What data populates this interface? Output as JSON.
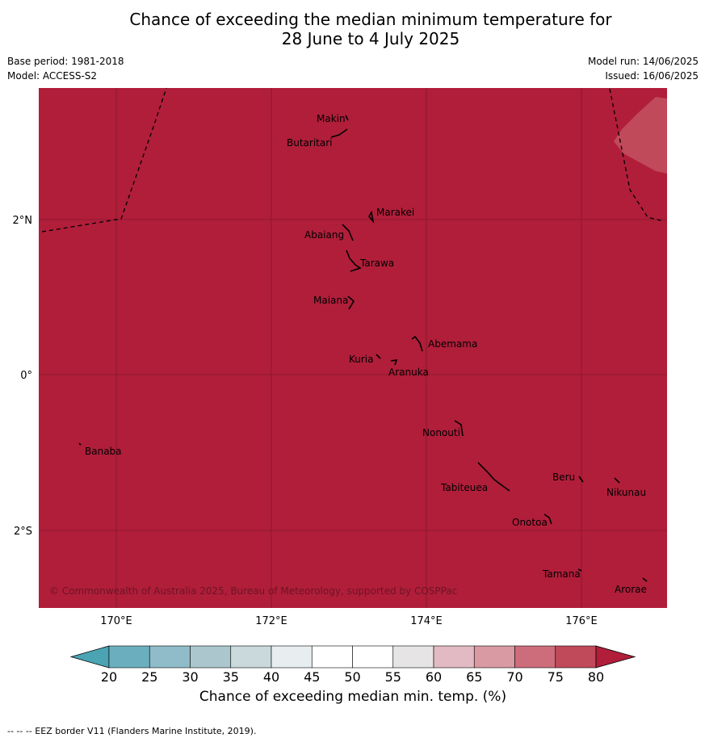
{
  "title": {
    "line1": "Chance of exceeding the median minimum temperature for",
    "line2": "28 June to 4 July 2025"
  },
  "meta": {
    "base_period": "Base period: 1981-2018",
    "model": "Model: ACCESS-S2",
    "model_run": "Model run: 14/06/2025",
    "issued": "Issued: 16/06/2025"
  },
  "map": {
    "fill_color": "#b01e3a",
    "lon_ticks": [
      "170°E",
      "172°E",
      "174°E",
      "176°E"
    ],
    "lat_ticks": [
      "2°N",
      "0°",
      "2°S"
    ],
    "copyright": "© Commonwealth of Australia 2025, Bureau of Meteorology, supported by COSPPac",
    "places": [
      "Makin",
      "Butaritari",
      "Marakei",
      "Abaiang",
      "Tarawa",
      "Maiana",
      "Abemama",
      "Kuria",
      "Aranuka",
      "Nonouti",
      "Banaba",
      "Beru",
      "Nikunau",
      "Tabiteuea",
      "Onotoa",
      "Tamana",
      "Arorae"
    ]
  },
  "colorbar": {
    "ticks": [
      "20",
      "25",
      "30",
      "35",
      "40",
      "45",
      "50",
      "55",
      "60",
      "65",
      "70",
      "75",
      "80"
    ],
    "colors": [
      "#6bafbe",
      "#8fbcc8",
      "#abc7cd",
      "#c9d9dc",
      "#e8eef0",
      "#ffffff",
      "#ffffff",
      "#e7e4e5",
      "#e1bac3",
      "#d99aa3",
      "#cd6d7c",
      "#c0495a"
    ],
    "low_extend_color": "#4aa4b3",
    "high_extend_color": "#b01e3a",
    "label": "Chance of exceeding median min. temp. (%)"
  },
  "footnote": "--  --  -- EEZ border V11 (Flanders Marine Institute, 2019)."
}
